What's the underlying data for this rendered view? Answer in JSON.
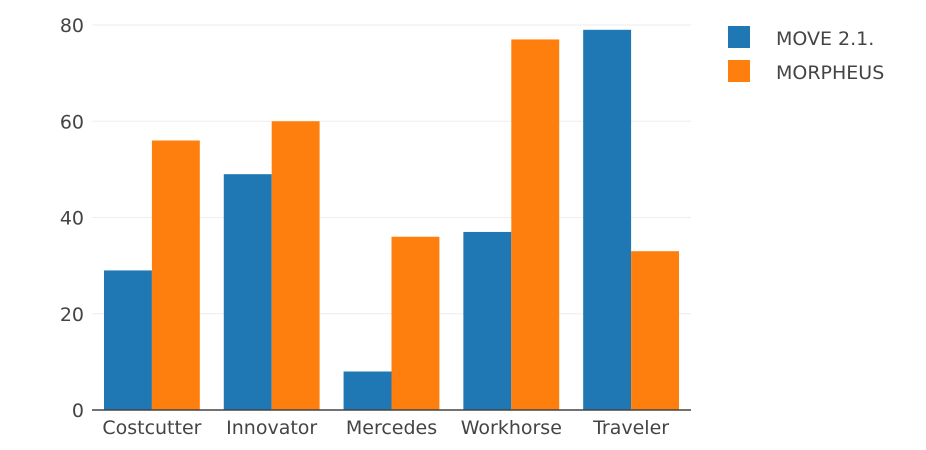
{
  "chart_data": {
    "type": "bar",
    "categories": [
      "Costcutter",
      "Innovator",
      "Mercedes",
      "Workhorse",
      "Traveler"
    ],
    "series": [
      {
        "name": "MOVE 2.1.",
        "values": [
          29,
          49,
          8,
          37,
          79
        ],
        "color": "#1f77b4"
      },
      {
        "name": "MORPHEUS",
        "values": [
          56,
          60,
          36,
          77,
          33
        ],
        "color": "#ff7f0e"
      }
    ],
    "title": "",
    "xlabel": "",
    "ylabel": "",
    "ylim": [
      0,
      80
    ],
    "yticks": [
      0,
      20,
      40,
      60,
      80
    ],
    "grid": true,
    "legend_position": "top-right"
  }
}
